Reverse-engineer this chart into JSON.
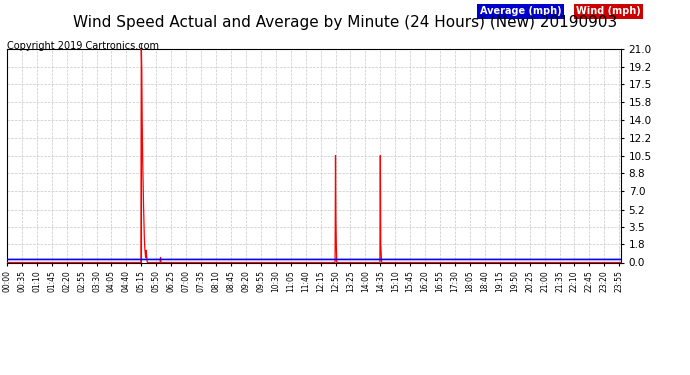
{
  "title": "Wind Speed Actual and Average by Minute (24 Hours) (New) 20190903",
  "copyright": "Copyright 2019 Cartronics.com",
  "yticks": [
    0.0,
    1.8,
    3.5,
    5.2,
    7.0,
    8.8,
    10.5,
    12.2,
    14.0,
    15.8,
    17.5,
    19.2,
    21.0
  ],
  "ymax": 21.0,
  "ymin": 0.0,
  "total_minutes": 1440,
  "background_color": "#ffffff",
  "plot_bg_color": "#ffffff",
  "grid_color": "#c8c8c8",
  "avg_line_color": "#0000ff",
  "wind_line_color": "#ff0000",
  "dark_line_color": "#404040",
  "legend_avg_bg": "#0000cc",
  "legend_wind_bg": "#cc0000",
  "legend_avg_text": "Average (mph)",
  "legend_wind_text": "Wind (mph)",
  "title_fontsize": 11,
  "copyright_fontsize": 7,
  "avg_value": 0.3,
  "wind_data": [
    [
      315,
      21.0
    ],
    [
      316,
      19.0
    ],
    [
      317,
      14.0
    ],
    [
      318,
      10.5
    ],
    [
      319,
      8.0
    ],
    [
      320,
      6.0
    ],
    [
      321,
      4.0
    ],
    [
      322,
      2.5
    ],
    [
      323,
      1.5
    ],
    [
      324,
      1.0
    ],
    [
      325,
      0.5
    ],
    [
      326,
      1.2
    ],
    [
      327,
      0.8
    ],
    [
      328,
      0.5
    ],
    [
      360,
      0.5
    ],
    [
      770,
      10.5
    ],
    [
      771,
      4.0
    ],
    [
      772,
      1.5
    ],
    [
      875,
      10.5
    ],
    [
      876,
      1.8
    ],
    [
      877,
      0.8
    ]
  ],
  "dark_spike": [
    314,
    21.5
  ]
}
